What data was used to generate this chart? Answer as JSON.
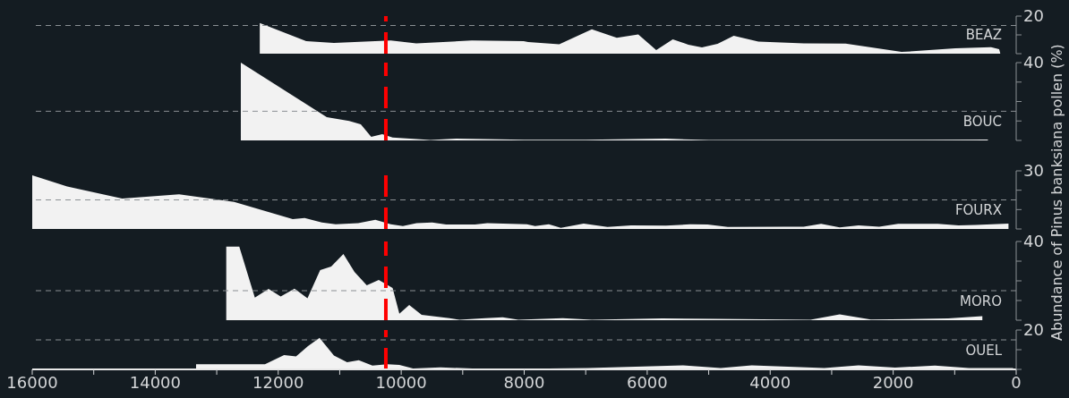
{
  "chart_data": [
    {
      "type": "area",
      "tick_labels": "y",
      "xlim": [
        16000,
        0
      ],
      "xticks": [
        {
          "value": 16000,
          "label": null
        },
        {
          "value": 14000,
          "label": null
        },
        {
          "value": 12000,
          "label": null
        },
        {
          "value": 10000,
          "label": null
        },
        {
          "value": 8000,
          "label": null
        },
        {
          "value": 6000,
          "label": null
        },
        {
          "value": 4000,
          "label": null
        },
        {
          "value": 2000,
          "label": null
        },
        {
          "value": 0,
          "label": null
        }
      ],
      "ylim": [
        0,
        20
      ],
      "yticks": [
        {
          "value": 0,
          "label": null
        },
        {
          "value": 10,
          "label": null
        },
        20
      ],
      "x": [
        12300,
        11545,
        11094,
        10170,
        9755,
        8852,
        8010,
        7935,
        7430,
        6900,
        6494,
        6145,
        5853,
        5584,
        5330,
        5110,
        4856,
        4593,
        4192,
        3451,
        2773,
        1864,
        990,
        408,
        277,
        260
      ],
      "series": [
        {
          "name": "BEAZ",
          "color": "#f2f2f2",
          "values": [
            16.3,
            6.7,
            5.7,
            7,
            5.5,
            7,
            6.7,
            6.2,
            5,
            13,
            8.4,
            10.2,
            1.9,
            7.6,
            4.8,
            3.3,
            5.2,
            9.5,
            6.4,
            5.5,
            5.3,
            0.9,
            2.8,
            3.5,
            2.4,
            0.3
          ]
        }
      ],
      "ref_lines": [
        {
          "axis": "y",
          "value": 15,
          "color": "#8a8f93",
          "line_style": "dashed"
        },
        {
          "axis": "x",
          "value": 10250,
          "color": "#ff0000",
          "line_style": "dashed"
        }
      ]
    },
    {
      "type": "area",
      "tick_labels": "y",
      "xlim": [
        16000,
        0
      ],
      "xticks": [
        {
          "value": 16000,
          "label": null
        },
        {
          "value": 14000,
          "label": null
        },
        {
          "value": 12000,
          "label": null
        },
        {
          "value": 10000,
          "label": null
        },
        {
          "value": 8000,
          "label": null
        },
        {
          "value": 6000,
          "label": null
        },
        {
          "value": 4000,
          "label": null
        },
        {
          "value": 2000,
          "label": null
        },
        {
          "value": 0,
          "label": null
        }
      ],
      "ylim": [
        0,
        40
      ],
      "yticks": [
        {
          "value": 0,
          "label": null
        },
        {
          "value": 10,
          "label": null
        },
        {
          "value": 20,
          "label": null
        },
        {
          "value": 30,
          "label": null
        },
        40
      ],
      "x": [
        12608,
        11210,
        10846,
        10657,
        10488,
        10308,
        10140,
        9525,
        9105,
        8000,
        7000,
        5700,
        5000,
        3000,
        1500,
        460
      ],
      "series": [
        {
          "name": "BOUC",
          "color": "#f2f2f2",
          "values": [
            40,
            12,
            10,
            8.3,
            1.8,
            3.2,
            1.5,
            0.2,
            0.9,
            0.4,
            0.3,
            0.9,
            0.2,
            0.3,
            0.3,
            0.5
          ]
        }
      ],
      "ref_lines": [
        {
          "axis": "y",
          "value": 15,
          "color": "#8a8f93",
          "line_style": "dashed"
        },
        {
          "axis": "x",
          "value": 10250,
          "color": "#ff0000",
          "line_style": "dashed"
        }
      ]
    },
    {
      "type": "area",
      "tick_labels": "y",
      "ylabel": "Abundance of Pinus banksiana pollen (%)",
      "xlim": [
        16000,
        0
      ],
      "xticks": [
        {
          "value": 16000,
          "label": null
        },
        {
          "value": 14000,
          "label": null
        },
        {
          "value": 12000,
          "label": null
        },
        {
          "value": 10000,
          "label": null
        },
        {
          "value": 8000,
          "label": null
        },
        {
          "value": 6000,
          "label": null
        },
        {
          "value": 4000,
          "label": null
        },
        {
          "value": 2000,
          "label": null
        },
        {
          "value": 0,
          "label": null
        }
      ],
      "ylim": [
        0,
        30
      ],
      "yticks": [
        {
          "value": 0,
          "label": null
        },
        {
          "value": 10,
          "label": null
        },
        {
          "value": 20,
          "label": null
        },
        30
      ],
      "x": [
        16000,
        15432,
        14537,
        13612,
        12717,
        11764,
        11570,
        11290,
        11065,
        10700,
        10420,
        10170,
        9973,
        9750,
        9497,
        9270,
        8800,
        8600,
        7957,
        7823,
        7600,
        7404,
        7033,
        6646,
        6260,
        5694,
        5300,
        5020,
        4688,
        3742,
        3456,
        3172,
        2870,
        2563,
        2228,
        1920,
        1273,
        938,
        656,
        125
      ],
      "series": [
        {
          "name": "FOURX",
          "color": "#f2f2f2",
          "values": [
            27.7,
            21.9,
            15.7,
            17.9,
            14,
            5.1,
            5.6,
            3.3,
            2.4,
            3,
            4.7,
            2.4,
            1.5,
            3,
            3.3,
            2.3,
            2.3,
            3,
            2.4,
            1.5,
            2.4,
            0.6,
            2.8,
            1,
            1.8,
            1.7,
            2.4,
            2.3,
            1,
            1.2,
            1.2,
            2.6,
            0.8,
            1.8,
            1.2,
            2.6,
            2.6,
            1.8,
            2.1,
            2.8
          ]
        }
      ],
      "ref_lines": [
        {
          "axis": "y",
          "value": 15,
          "color": "#8a8f93",
          "line_style": "dashed"
        },
        {
          "axis": "x",
          "value": 10250,
          "color": "#ff0000",
          "line_style": "dashed"
        }
      ]
    },
    {
      "type": "area",
      "tick_labels": "y",
      "xlim": [
        16000,
        0
      ],
      "xticks": [
        {
          "value": 16000,
          "label": null
        },
        {
          "value": 14000,
          "label": null
        },
        {
          "value": 12000,
          "label": null
        },
        {
          "value": 10000,
          "label": null
        },
        {
          "value": 8000,
          "label": null
        },
        {
          "value": 6000,
          "label": null
        },
        {
          "value": 4000,
          "label": null
        },
        {
          "value": 2000,
          "label": null
        },
        {
          "value": 0,
          "label": null
        }
      ],
      "ylim": [
        0,
        40
      ],
      "yticks": [
        {
          "value": 0,
          "label": null
        },
        {
          "value": 10,
          "label": null
        },
        {
          "value": 20,
          "label": null
        },
        {
          "value": 30,
          "label": null
        },
        40
      ],
      "x": [
        12845,
        12633,
        12380,
        12157,
        11960,
        11735,
        11524,
        11318,
        11138,
        10940,
        10760,
        10560,
        10365,
        10140,
        10030,
        9870,
        9668,
        9215,
        9050,
        8634,
        8350,
        8095,
        7375,
        6900,
        5750,
        4912,
        3345,
        2870,
        2364,
        1107,
        550
      ],
      "series": [
        {
          "name": "MORO",
          "color": "#f2f2f2",
          "values": [
            37.4,
            37.4,
            11.5,
            15.9,
            12,
            16,
            11.1,
            25.5,
            27.3,
            33.6,
            24.5,
            17.7,
            20.5,
            16.4,
            3.3,
            7.7,
            2.7,
            1,
            0.2,
            1,
            1.5,
            0.2,
            1,
            0.2,
            0.9,
            0.7,
            0.2,
            2.9,
            0.3,
            0.9,
            2
          ]
        }
      ],
      "ref_lines": [
        {
          "axis": "y",
          "value": 15,
          "color": "#8a8f93",
          "line_style": "dashed"
        },
        {
          "axis": "x",
          "value": 10250,
          "color": "#ff0000",
          "line_style": "dashed"
        }
      ]
    },
    {
      "type": "area",
      "xlim": [
        16000,
        0
      ],
      "xticks": [
        16000,
        {
          "value": 15000,
          "label": null
        },
        14000,
        {
          "value": 13000,
          "label": null
        },
        12000,
        {
          "value": 11000,
          "label": null
        },
        10000,
        {
          "value": 9000,
          "label": null
        },
        8000,
        {
          "value": 7000,
          "label": null
        },
        6000,
        {
          "value": 5000,
          "label": null
        },
        4000,
        {
          "value": 3000,
          "label": null
        },
        2000,
        {
          "value": 1000,
          "label": null
        },
        0
      ],
      "ylim": [
        0,
        20
      ],
      "yticks": [
        {
          "value": 0,
          "label": null
        },
        {
          "value": 10,
          "label": null
        },
        20
      ],
      "x": [
        13336,
        12215,
        11905,
        11710,
        11516,
        11328,
        11094,
        10880,
        10690,
        10468,
        10225,
        10030,
        9806,
        9362,
        8460,
        7930,
        6960,
        5416,
        4805,
        4300,
        3120,
        2563,
        1970,
        1320,
        770,
        50
      ],
      "series": [
        {
          "name": "OUEL",
          "color": "#f2f2f2",
          "values": [
            2.6,
            2.6,
            7.3,
            6.6,
            11.8,
            16,
            7.1,
            3.6,
            4.7,
            1.9,
            2.6,
            2.3,
            0.5,
            1,
            0,
            0.3,
            0.7,
            2,
            0.7,
            2,
            0.7,
            2,
            0.9,
            1.9,
            0.7,
            0.7
          ]
        }
      ],
      "ref_lines": [
        {
          "axis": "y",
          "value": 15,
          "color": "#8a8f93",
          "line_style": "dashed"
        },
        {
          "axis": "x",
          "value": 10250,
          "color": "#ff0000",
          "line_style": "dashed"
        }
      ]
    }
  ]
}
